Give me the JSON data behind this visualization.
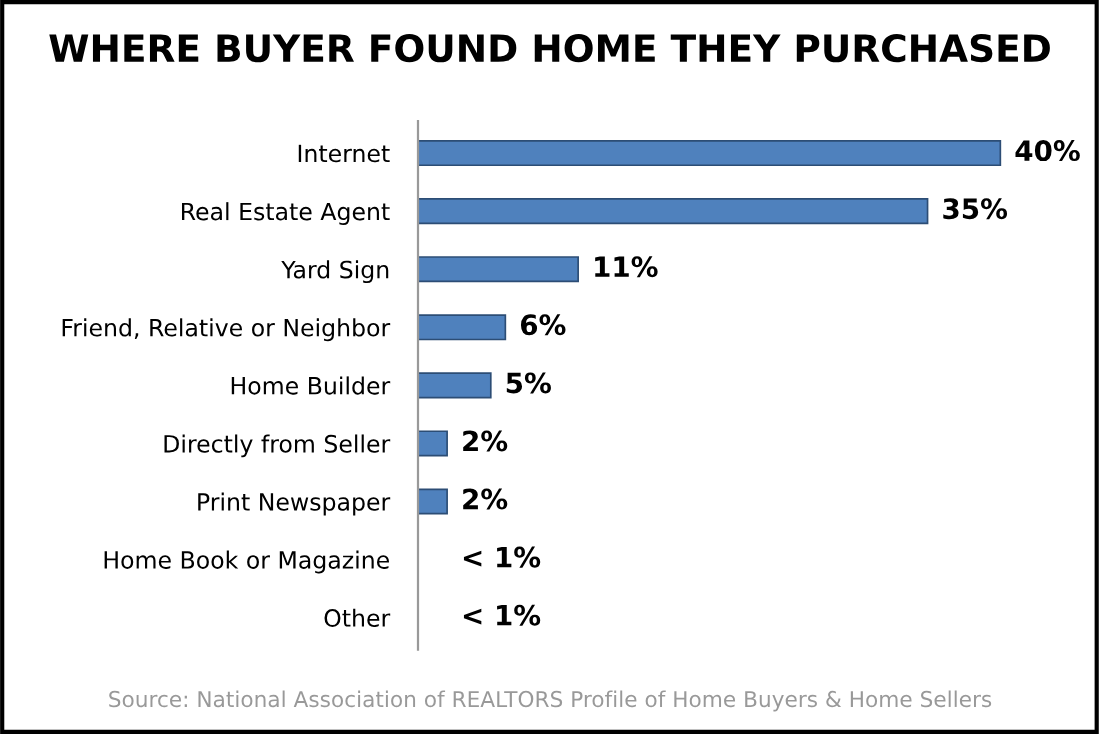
{
  "chart_data": {
    "type": "bar",
    "orientation": "horizontal",
    "title": "WHERE BUYER FOUND HOME THEY PURCHASED",
    "categories": [
      "Internet",
      "Real Estate Agent",
      "Yard Sign",
      "Friend, Relative or Neighbor",
      "Home Builder",
      "Directly from Seller",
      "Print Newspaper",
      "Home Book or Magazine",
      "Other"
    ],
    "values": [
      40,
      35,
      11,
      6,
      5,
      2,
      2,
      null,
      null
    ],
    "value_labels": [
      "40%",
      "35%",
      "11%",
      "6%",
      "5%",
      "2%",
      "2%",
      "< 1%",
      "< 1%"
    ],
    "color": "#4f81bd",
    "grid": false,
    "legend": false,
    "annotations": [
      "Source: National Association of REALTORS Profile of Home Buyers & Home Sellers"
    ]
  }
}
